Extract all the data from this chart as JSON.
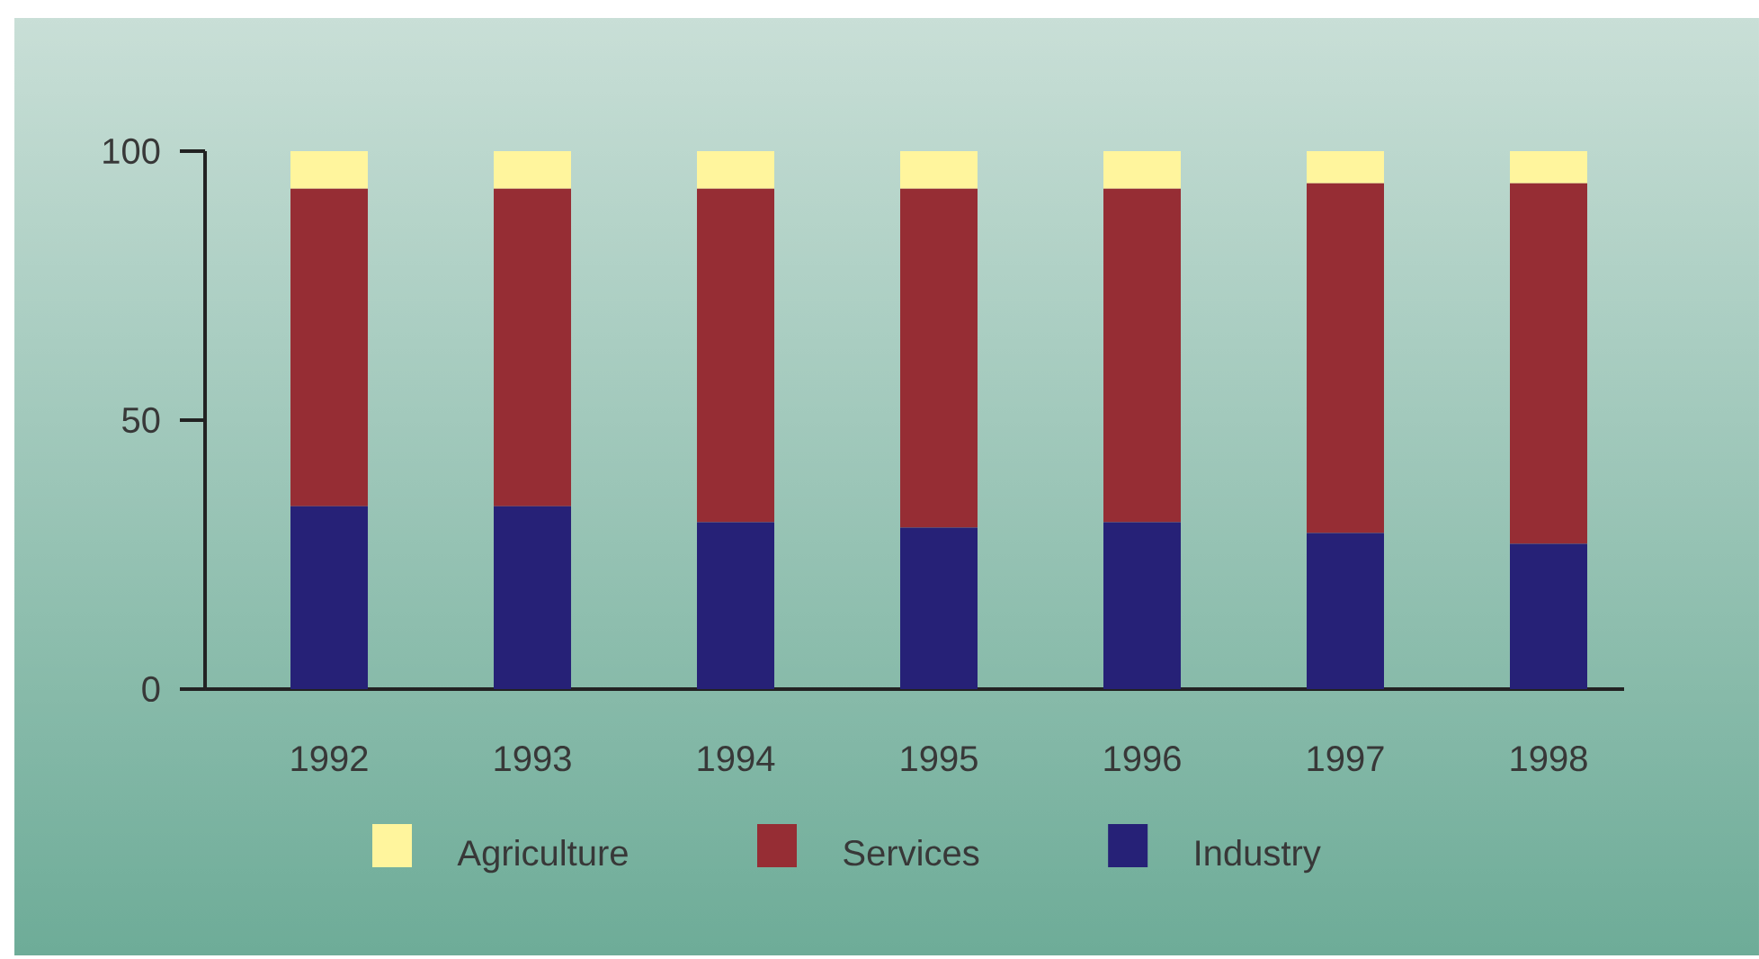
{
  "chart_data": {
    "type": "bar",
    "stacked": true,
    "categories": [
      "1992",
      "1993",
      "1994",
      "1995",
      "1996",
      "1997",
      "1998"
    ],
    "series": [
      {
        "name": "Industry",
        "color": "#262177",
        "values": [
          34,
          34,
          31,
          30,
          31,
          29,
          27
        ]
      },
      {
        "name": "Services",
        "color": "#962d34",
        "values": [
          59,
          59,
          62,
          63,
          62,
          65,
          67
        ]
      },
      {
        "name": "Agriculture",
        "color": "#fff59d",
        "values": [
          7,
          7,
          7,
          7,
          7,
          6,
          6
        ]
      }
    ],
    "ylim": [
      0,
      100
    ],
    "yticks": [
      0,
      50,
      100
    ],
    "legend": "bottom"
  }
}
